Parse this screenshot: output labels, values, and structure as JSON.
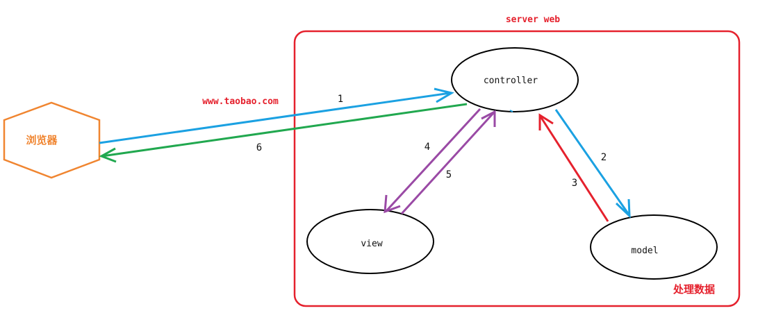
{
  "diagram": {
    "server_label": "server web",
    "url_label": "www.taobao.com",
    "process_label": "处理数据",
    "browser_label": "浏览器",
    "nodes": {
      "controller": "controller",
      "view": "view",
      "model": "model"
    },
    "arrows": {
      "a1": "1",
      "a2": "2",
      "a3": "3",
      "a4": "4",
      "a5": "5",
      "a6": "6"
    }
  },
  "colors": {
    "server_border": "#e5212d",
    "browser": "#f08530",
    "blue": "#1ba1e2",
    "green": "#21a84f",
    "purple": "#9a4aa5",
    "red": "#e5212d",
    "text_dark": "#111111"
  }
}
